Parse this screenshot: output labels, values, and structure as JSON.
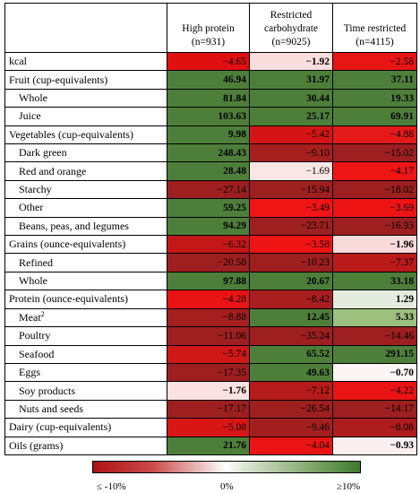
{
  "headers": [
    {
      "key": "hp",
      "line1": "High protein",
      "line2": "(n=931)"
    },
    {
      "key": "rc",
      "line1": "Restricted carbohydrate",
      "line2": "(n=9025)"
    },
    {
      "key": "tr",
      "line1": "Time restricted",
      "line2": "(n=4115)"
    }
  ],
  "rows": [
    {
      "label": "kcal",
      "sub": false,
      "group_start": true,
      "cells": [
        {
          "text": "−4.65",
          "value": -4.65,
          "bg": "#e01010",
          "bold": false
        },
        {
          "text": "−1.92",
          "value": -1.92,
          "bg": "#f9dedd",
          "bold": true
        },
        {
          "text": "−2.58",
          "value": -2.58,
          "bg": "#e81515",
          "bold": false
        }
      ]
    },
    {
      "label": "Fruit (cup-equivalents)",
      "sub": false,
      "group_start": true,
      "cells": [
        {
          "text": "46.94",
          "value": 46.94,
          "bg": "#4e7f3a",
          "bold": true
        },
        {
          "text": "31.97",
          "value": 31.97,
          "bg": "#4e7f3a",
          "bold": true
        },
        {
          "text": "37.11",
          "value": 37.11,
          "bg": "#4e7f3a",
          "bold": true
        }
      ]
    },
    {
      "label": "Whole",
      "sub": true,
      "group_start": false,
      "cells": [
        {
          "text": "81.84",
          "value": 81.84,
          "bg": "#4e7f3a",
          "bold": true
        },
        {
          "text": "30.44",
          "value": 30.44,
          "bg": "#4e7f3a",
          "bold": true
        },
        {
          "text": "19.33",
          "value": 19.33,
          "bg": "#4e7f3a",
          "bold": true
        }
      ]
    },
    {
      "label": "Juice",
      "sub": true,
      "group_start": false,
      "cells": [
        {
          "text": "103.63",
          "value": 103.63,
          "bg": "#4e7f3a",
          "bold": true
        },
        {
          "text": "25.17",
          "value": 25.17,
          "bg": "#4e7f3a",
          "bold": true
        },
        {
          "text": "69.91",
          "value": 69.91,
          "bg": "#4e7f3a",
          "bold": true
        }
      ]
    },
    {
      "label": "Vegetables (cup-equivalents)",
      "sub": false,
      "group_start": true,
      "cells": [
        {
          "text": "9.98",
          "value": 9.98,
          "bg": "#4e7f3a",
          "bold": true
        },
        {
          "text": "−5.42",
          "value": -5.42,
          "bg": "#d51515",
          "bold": false
        },
        {
          "text": "−4.88",
          "value": -4.88,
          "bg": "#e41a1a",
          "bold": false
        }
      ]
    },
    {
      "label": "Dark green",
      "sub": true,
      "group_start": false,
      "cells": [
        {
          "text": "248.43",
          "value": 248.43,
          "bg": "#4e7f3a",
          "bold": true
        },
        {
          "text": "−9.10",
          "value": -9.1,
          "bg": "#a51f1f",
          "bold": false
        },
        {
          "text": "−15.02",
          "value": -15.02,
          "bg": "#9d1f1f",
          "bold": false
        }
      ]
    },
    {
      "label": "Red and orange",
      "sub": true,
      "group_start": false,
      "cells": [
        {
          "text": "28.48",
          "value": 28.48,
          "bg": "#4e7f3a",
          "bold": true
        },
        {
          "text": "−1.69",
          "value": -1.69,
          "bg": "#fbe6e6",
          "bold": false
        },
        {
          "text": "−4.17",
          "value": -4.17,
          "bg": "#ee1515",
          "bold": false
        }
      ]
    },
    {
      "label": "Starchy",
      "sub": true,
      "group_start": false,
      "cells": [
        {
          "text": "−27.14",
          "value": -27.14,
          "bg": "#9d1f1f",
          "bold": false
        },
        {
          "text": "−15.94",
          "value": -15.94,
          "bg": "#9d1f1f",
          "bold": false
        },
        {
          "text": "−18.02",
          "value": -18.02,
          "bg": "#9d1f1f",
          "bold": false
        }
      ]
    },
    {
      "label": "Other",
      "sub": true,
      "group_start": false,
      "cells": [
        {
          "text": "59.25",
          "value": 59.25,
          "bg": "#4e7f3a",
          "bold": true
        },
        {
          "text": "−3.49",
          "value": -3.49,
          "bg": "#f01414",
          "bold": false
        },
        {
          "text": "−3.69",
          "value": -3.69,
          "bg": "#ee1414",
          "bold": false
        }
      ]
    },
    {
      "label": "Beans, peas, and legumes",
      "sub": true,
      "group_start": false,
      "cells": [
        {
          "text": "94.29",
          "value": 94.29,
          "bg": "#4e7f3a",
          "bold": true
        },
        {
          "text": "−23.71",
          "value": -23.71,
          "bg": "#9d1f1f",
          "bold": false
        },
        {
          "text": "−16.93",
          "value": -16.93,
          "bg": "#9d1f1f",
          "bold": false
        }
      ]
    },
    {
      "label": "Grains (ounce-equivalents)",
      "sub": false,
      "group_start": true,
      "cells": [
        {
          "text": "−6.32",
          "value": -6.32,
          "bg": "#c41818",
          "bold": false
        },
        {
          "text": "−3.58",
          "value": -3.58,
          "bg": "#ee1414",
          "bold": false
        },
        {
          "text": "−1.96",
          "value": -1.96,
          "bg": "#f9dada",
          "bold": true
        }
      ]
    },
    {
      "label": "Refined",
      "sub": true,
      "group_start": false,
      "cells": [
        {
          "text": "−20.58",
          "value": -20.58,
          "bg": "#9d1f1f",
          "bold": false
        },
        {
          "text": "−10.23",
          "value": -10.23,
          "bg": "#9d1f1f",
          "bold": false
        },
        {
          "text": "−7.37",
          "value": -7.37,
          "bg": "#ba1a1a",
          "bold": false
        }
      ]
    },
    {
      "label": "Whole",
      "sub": true,
      "group_start": false,
      "cells": [
        {
          "text": "97.88",
          "value": 97.88,
          "bg": "#4e7f3a",
          "bold": true
        },
        {
          "text": "20.67",
          "value": 20.67,
          "bg": "#4e7f3a",
          "bold": true
        },
        {
          "text": "33.18",
          "value": 33.18,
          "bg": "#4e7f3a",
          "bold": true
        }
      ]
    },
    {
      "label": "Protein (ounce-equivalents)",
      "sub": false,
      "group_start": true,
      "cells": [
        {
          "text": "−4.28",
          "value": -4.28,
          "bg": "#e81414",
          "bold": false
        },
        {
          "text": "−8.42",
          "value": -8.42,
          "bg": "#a81e1e",
          "bold": false
        },
        {
          "text": "1.29",
          "value": 1.29,
          "bg": "#e4ecdd",
          "bold": true
        }
      ]
    },
    {
      "label": "Meat",
      "sup": "2",
      "sub": true,
      "group_start": false,
      "cells": [
        {
          "text": "−8.88",
          "value": -8.88,
          "bg": "#a51f1f",
          "bold": false
        },
        {
          "text": "12.45",
          "value": 12.45,
          "bg": "#4e7f3a",
          "bold": true
        },
        {
          "text": "5.33",
          "value": 5.33,
          "bg": "#9ec07f",
          "bold": true
        }
      ]
    },
    {
      "label": "Poultry",
      "sub": true,
      "group_start": false,
      "cells": [
        {
          "text": "−11.06",
          "value": -11.06,
          "bg": "#9d1f1f",
          "bold": false
        },
        {
          "text": "−35.24",
          "value": -35.24,
          "bg": "#9d1f1f",
          "bold": false
        },
        {
          "text": "−14.46",
          "value": -14.46,
          "bg": "#9d1f1f",
          "bold": false
        }
      ]
    },
    {
      "label": "Seafood",
      "sub": true,
      "group_start": false,
      "cells": [
        {
          "text": "−5.74",
          "value": -5.74,
          "bg": "#d01818",
          "bold": false
        },
        {
          "text": "65.52",
          "value": 65.52,
          "bg": "#4e7f3a",
          "bold": true
        },
        {
          "text": "291.15",
          "value": 291.15,
          "bg": "#4e7f3a",
          "bold": true
        }
      ]
    },
    {
      "label": "Eggs",
      "sub": true,
      "group_start": false,
      "cells": [
        {
          "text": "−17.35",
          "value": -17.35,
          "bg": "#9d1f1f",
          "bold": false
        },
        {
          "text": "49.63",
          "value": 49.63,
          "bg": "#4e7f3a",
          "bold": true
        },
        {
          "text": "−0.70",
          "value": -0.7,
          "bg": "#fdf4f4",
          "bold": true
        }
      ]
    },
    {
      "label": "Soy products",
      "sub": true,
      "group_start": false,
      "cells": [
        {
          "text": "−1.76",
          "value": -1.76,
          "bg": "#fbe1e1",
          "bold": true
        },
        {
          "text": "−7.12",
          "value": -7.12,
          "bg": "#b51b1b",
          "bold": false
        },
        {
          "text": "−4.22",
          "value": -4.22,
          "bg": "#ea1414",
          "bold": false
        }
      ]
    },
    {
      "label": "Nuts and seeds",
      "sub": true,
      "group_start": false,
      "cells": [
        {
          "text": "−17.17",
          "value": -17.17,
          "bg": "#9d1f1f",
          "bold": false
        },
        {
          "text": "−26.54",
          "value": -26.54,
          "bg": "#9d1f1f",
          "bold": false
        },
        {
          "text": "−14.17",
          "value": -14.17,
          "bg": "#9d1f1f",
          "bold": false
        }
      ]
    },
    {
      "label": "Dairy (cup-equivalents)",
      "sub": false,
      "group_start": true,
      "cells": [
        {
          "text": "−5.08",
          "value": -5.08,
          "bg": "#d81616",
          "bold": false
        },
        {
          "text": "−9.46",
          "value": -9.46,
          "bg": "#a31f1f",
          "bold": false
        },
        {
          "text": "−8.08",
          "value": -8.08,
          "bg": "#ad1d1d",
          "bold": false
        }
      ]
    },
    {
      "label": "Oils (grams)",
      "sub": false,
      "group_start": true,
      "cells": [
        {
          "text": "21.76",
          "value": 21.76,
          "bg": "#4e7f3a",
          "bold": true
        },
        {
          "text": "−4.04",
          "value": -4.04,
          "bg": "#ea1414",
          "bold": false
        },
        {
          "text": "−0.93",
          "value": -0.93,
          "bg": "#fcefef",
          "bold": true
        }
      ]
    }
  ],
  "legend": {
    "low_label": "≤ -10%",
    "mid_label": "0%",
    "high_label": "≥10%",
    "low_color": "#ae1212",
    "mid_color": "#ffffff",
    "high_color": "#3e7a2c"
  }
}
